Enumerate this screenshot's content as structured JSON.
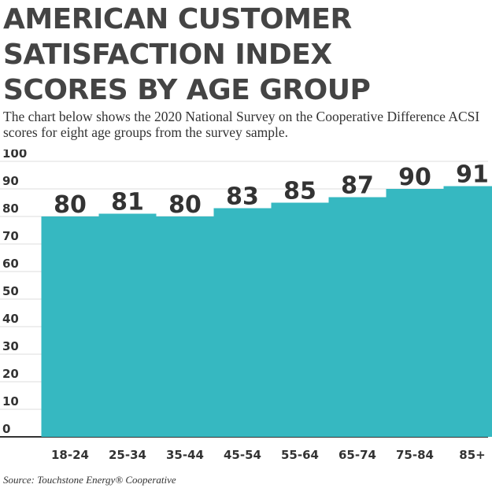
{
  "header": {
    "title_lines": [
      "AMERICAN CUSTOMER",
      "SATISFACTION INDEX",
      "SCORES BY AGE GROUP"
    ],
    "subtitle": "The chart below shows the 2020 National Survey on the Cooperative Difference ACSI scores for eight age groups from the survey sample."
  },
  "source": "Source: Touchstone Energy® Cooperative",
  "chart_data": {
    "type": "bar",
    "title": "AMERICAN CUSTOMER SATISFACTION INDEX SCORES BY AGE GROUP",
    "categories": [
      "18-24",
      "25-34",
      "35-44",
      "45-54",
      "55-64",
      "65-74",
      "75-84",
      "85+"
    ],
    "values": [
      80,
      81,
      80,
      83,
      85,
      87,
      90,
      91
    ],
    "yticks": [
      0,
      10,
      20,
      30,
      40,
      50,
      60,
      70,
      80,
      90,
      100
    ],
    "ylim": [
      0,
      100
    ],
    "xlabel": "",
    "ylabel": "",
    "grid": true,
    "bar_color": "#36b8c1",
    "grid_color": "#dddddd",
    "axis_color": "#333333"
  }
}
